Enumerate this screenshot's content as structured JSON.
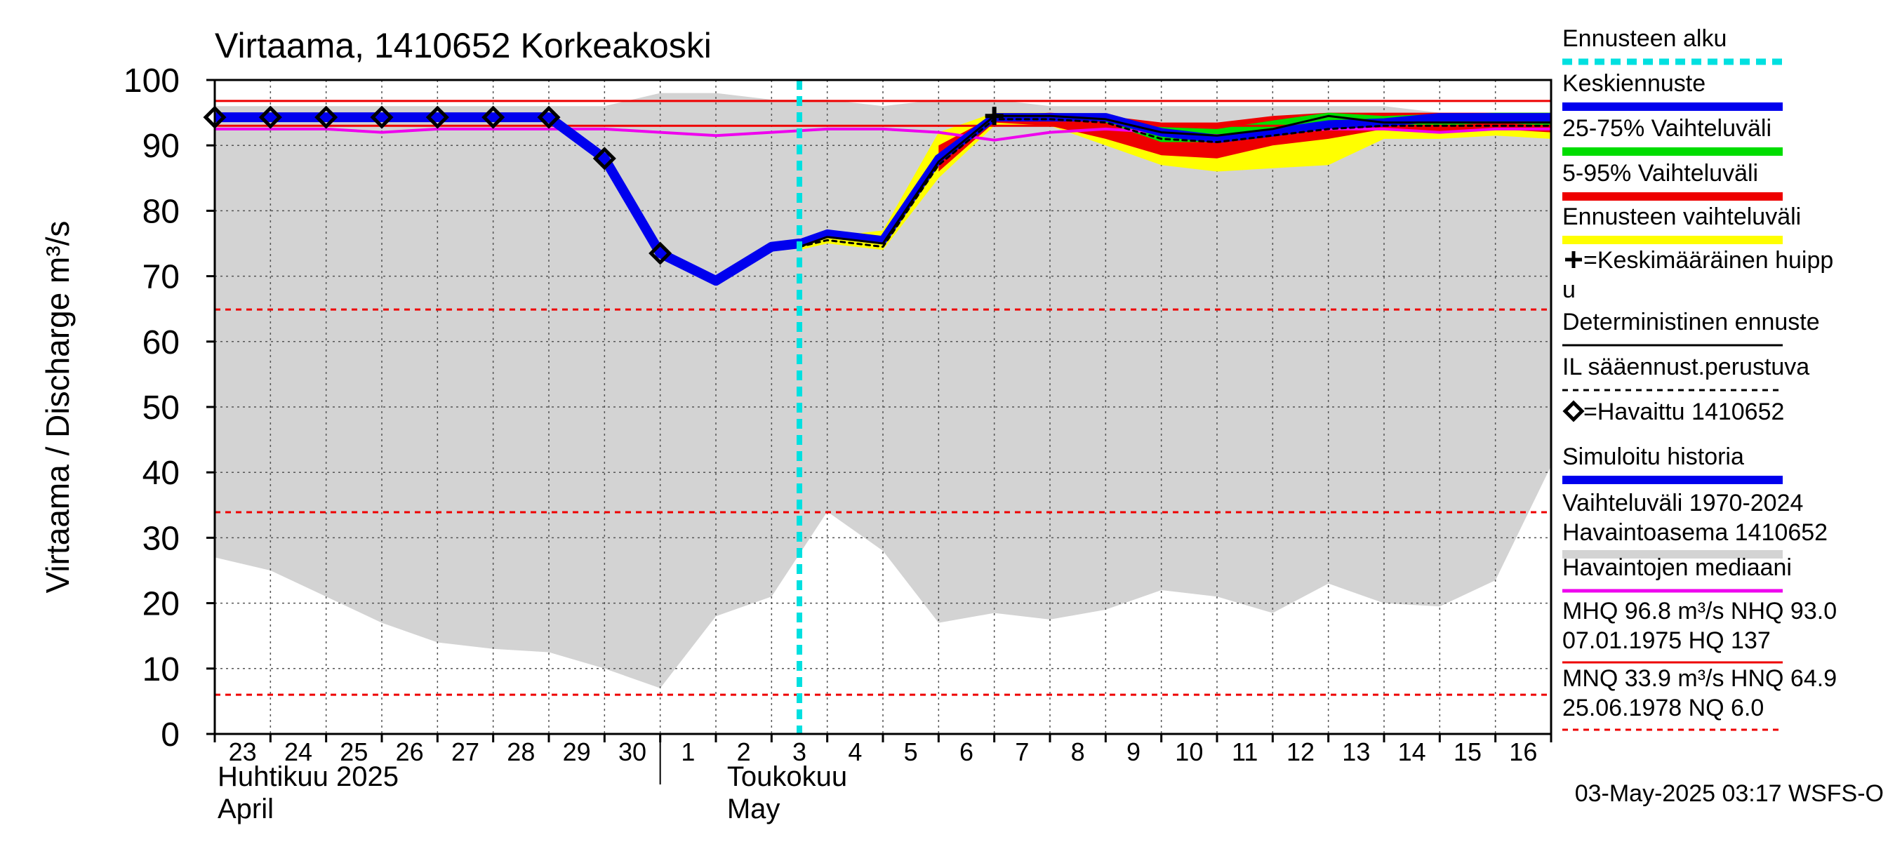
{
  "chart_data": {
    "type": "line",
    "title": "Virtaama, 1410652 Korkeakoski",
    "ylabel": "Virtaama / Discharge   m³/s",
    "ylim": [
      0,
      100
    ],
    "yticks": [
      0,
      10,
      20,
      30,
      40,
      50,
      60,
      70,
      80,
      90,
      100
    ],
    "x_tick_labels": [
      "23",
      "24",
      "25",
      "26",
      "27",
      "28",
      "29",
      "30",
      "1",
      "2",
      "3",
      "4",
      "5",
      "6",
      "7",
      "8",
      "9",
      "10",
      "11",
      "12",
      "13",
      "14",
      "15",
      "16"
    ],
    "month_labels": [
      {
        "fi": "Huhtikuu  2025",
        "en": "April"
      },
      {
        "fi": "Toukokuu",
        "en": "May"
      }
    ],
    "forecast_start_day": 10.5,
    "reference_lines": {
      "solid_red": [
        96.8,
        93.0
      ],
      "dashed_red": [
        64.9,
        33.9,
        6.0
      ]
    },
    "historical_range": {
      "days": [
        0,
        1,
        2,
        3,
        4,
        5,
        6,
        7,
        8,
        9,
        10,
        11,
        12,
        13,
        14,
        15,
        16,
        17,
        18,
        19,
        20,
        21,
        22,
        23,
        24
      ],
      "upper": [
        96,
        96,
        96,
        96,
        96,
        96,
        96,
        96,
        98,
        98,
        97,
        97,
        96,
        97,
        97,
        96,
        96,
        96,
        96,
        96,
        96,
        96,
        95,
        95,
        95
      ],
      "lower": [
        27,
        25,
        21,
        17,
        14,
        13,
        12.5,
        10,
        7,
        18,
        21,
        34,
        28,
        17,
        18.5,
        17.5,
        19,
        22,
        21,
        18.5,
        23,
        20,
        19.5,
        23.5,
        41
      ]
    },
    "forecast_range_yellow": {
      "days": [
        10.5,
        11,
        12,
        13,
        14,
        15,
        16,
        17,
        18,
        19,
        20,
        21,
        22,
        23,
        24
      ],
      "upper": [
        75,
        76,
        77,
        92,
        95,
        95,
        94,
        93,
        93,
        94,
        95,
        94.5,
        94.5,
        95,
        95
      ],
      "lower": [
        74,
        75,
        74,
        85,
        93,
        93,
        90,
        87,
        86,
        86.5,
        87,
        91,
        91,
        91.5,
        91
      ]
    },
    "forecast_range_red": {
      "days": [
        13,
        14,
        15,
        16,
        17,
        18,
        19,
        20,
        21,
        22,
        23,
        24
      ],
      "upper": [
        90,
        94.5,
        95,
        94.5,
        93.5,
        93.5,
        94.5,
        95,
        95,
        95,
        95,
        95
      ],
      "lower": [
        86,
        93.5,
        93,
        91,
        88.5,
        88,
        90,
        91,
        92.5,
        92,
        92.5,
        92
      ]
    },
    "forecast_range_green": {
      "days": [
        16,
        17,
        18,
        19,
        20,
        21,
        22,
        23,
        24
      ],
      "upper": [
        94.5,
        92.8,
        92.5,
        93.8,
        95,
        94.5,
        94.8,
        95,
        95
      ],
      "lower": [
        93.5,
        90.5,
        90.5,
        91.5,
        92.8,
        93,
        93,
        93.5,
        93
      ]
    },
    "series": [
      {
        "name": "Simuloitu historia",
        "days": [
          0,
          1,
          2,
          3,
          4,
          5,
          6,
          7,
          8,
          9,
          10,
          10.5
        ],
        "values": [
          94.3,
          94.3,
          94.3,
          94.3,
          94.3,
          94.3,
          94.3,
          88,
          73.5,
          69.3,
          74.5,
          75
        ],
        "color": "#0000ee"
      },
      {
        "name": "Keskiennuste",
        "days": [
          10.5,
          11,
          12,
          13,
          14,
          15,
          16,
          17,
          18,
          19,
          20,
          21,
          22,
          23,
          24
        ],
        "values": [
          75,
          76.5,
          75.5,
          88,
          94.3,
          94.3,
          94.3,
          92,
          91,
          92,
          93.2,
          93.5,
          94.3,
          94.3,
          94.3
        ],
        "color": "#0000ee"
      },
      {
        "name": "Havaintojen mediaani",
        "days": [
          0,
          1,
          2,
          3,
          4,
          5,
          6,
          7,
          8,
          9,
          10,
          11,
          12,
          13,
          14,
          15,
          16,
          17,
          18,
          19,
          20,
          21,
          22,
          23,
          24
        ],
        "values": [
          92.5,
          92.5,
          92.5,
          92,
          92.5,
          92.5,
          92.5,
          92.5,
          92,
          91.5,
          92,
          92.5,
          92.5,
          92,
          90.8,
          92,
          92.5,
          92,
          91.5,
          92,
          92.5,
          92.5,
          92,
          92.5,
          92.5
        ],
        "color": "#ee00ee"
      },
      {
        "name": "Deterministinen ennuste",
        "days": [
          10.5,
          11,
          12,
          13,
          14,
          15,
          16,
          17,
          18,
          19,
          20,
          21,
          22,
          23,
          24
        ],
        "values": [
          74.5,
          76,
          75,
          87.5,
          94.5,
          94.5,
          94,
          92,
          91.5,
          92.5,
          94.5,
          93.5,
          93.5,
          93.5,
          93.5
        ],
        "color": "#000000"
      },
      {
        "name": "IL sääennust.perustuva",
        "days": [
          10.5,
          11,
          12,
          13,
          14,
          15,
          16,
          17,
          18,
          19,
          20,
          21,
          22,
          23,
          24
        ],
        "values": [
          74.5,
          75.5,
          74.5,
          87,
          94,
          94,
          93.5,
          91,
          90.5,
          91.5,
          92.5,
          93,
          93,
          93,
          93
        ],
        "color": "#000000",
        "dashed": true
      }
    ],
    "observed": {
      "name": "Havaittu 1410652",
      "days": [
        0,
        1,
        2,
        3,
        4,
        5,
        6,
        7,
        8
      ],
      "values": [
        94.3,
        94.3,
        94.3,
        94.3,
        94.3,
        94.3,
        94.3,
        88,
        73.5
      ]
    },
    "mean_peak": {
      "day": 14,
      "value": 94.5
    },
    "legend": [
      {
        "label": "Ennusteen alku",
        "color": "#00e0e0",
        "style": "dashed-thick"
      },
      {
        "label": "Keskiennuste",
        "color": "#0000ee",
        "style": "solid-thick"
      },
      {
        "label": "25-75% Vaihteluväli",
        "color": "#00dd00",
        "style": "solid-thick"
      },
      {
        "label": "5-95% Vaihteluväli",
        "color": "#ee0000",
        "style": "solid-thick"
      },
      {
        "label": "Ennusteen vaihteluväli",
        "color": "#ffff00",
        "style": "solid-thick"
      },
      {
        "label": "=Keskimääräinen huipp",
        "label2": "u",
        "marker": "plus",
        "color": "#000000",
        "style": "none"
      },
      {
        "label": "Deterministinen ennuste",
        "color": "#000000",
        "style": "solid-thin"
      },
      {
        "label": "IL sääennust.perustuva",
        "color": "#000000",
        "style": "dashed-thin"
      },
      {
        "label": "=Havaittu 1410652",
        "marker": "diamond",
        "color": "#000000",
        "style": "none"
      },
      {
        "label": "Simuloitu historia",
        "color": "#0000ee",
        "style": "solid-thick"
      },
      {
        "label": "Vaihteluväli 1970-2024",
        "label2": " Havaintoasema 1410652",
        "color": "#d3d3d3",
        "style": "solid-thick"
      },
      {
        "label": "Havaintojen mediaani",
        "color": "#ee00ee",
        "style": "solid-mid"
      },
      {
        "label": "MHQ 96.8 m³/s NHQ 93.0",
        "label2": "07.01.1975 HQ  137",
        "color": "#ee0000",
        "style": "solid-thin"
      },
      {
        "label": "MNQ 33.9 m³/s HNQ 64.9",
        "label2": "25.06.1978 NQ  6.0",
        "color": "#ee0000",
        "style": "dashed-thin"
      }
    ],
    "footer": "03-May-2025 03:17 WSFS-O",
    "grid": true,
    "legend_position": "right"
  }
}
